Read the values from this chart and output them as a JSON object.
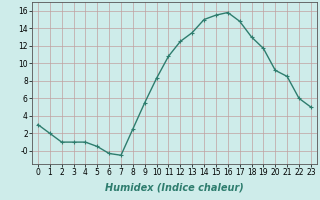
{
  "x": [
    0,
    1,
    2,
    3,
    4,
    5,
    6,
    7,
    8,
    9,
    10,
    11,
    12,
    13,
    14,
    15,
    16,
    17,
    18,
    19,
    20,
    21,
    22,
    23
  ],
  "y": [
    3,
    2,
    1,
    1,
    1,
    0.5,
    -0.3,
    -0.5,
    2.5,
    5.5,
    8.3,
    10.8,
    12.5,
    13.5,
    15.0,
    15.5,
    15.8,
    14.8,
    13.0,
    11.7,
    9.2,
    8.5,
    6.0,
    5.0
  ],
  "line_color": "#2e7d6e",
  "marker": "+",
  "marker_size": 3,
  "linewidth": 1.0,
  "background_color": "#ceecea",
  "grid_color": "#c0a0a0",
  "xlabel": "Humidex (Indice chaleur)",
  "xlabel_fontsize": 7,
  "xlim": [
    -0.5,
    23.5
  ],
  "ylim": [
    -1.5,
    17
  ],
  "yticks": [
    0,
    2,
    4,
    6,
    8,
    10,
    12,
    14,
    16
  ],
  "ytick_labels": [
    "-0",
    "2",
    "4",
    "6",
    "8",
    "10",
    "12",
    "14",
    "16"
  ],
  "xticks": [
    0,
    1,
    2,
    3,
    4,
    5,
    6,
    7,
    8,
    9,
    10,
    11,
    12,
    13,
    14,
    15,
    16,
    17,
    18,
    19,
    20,
    21,
    22,
    23
  ],
  "tick_fontsize": 5.5
}
